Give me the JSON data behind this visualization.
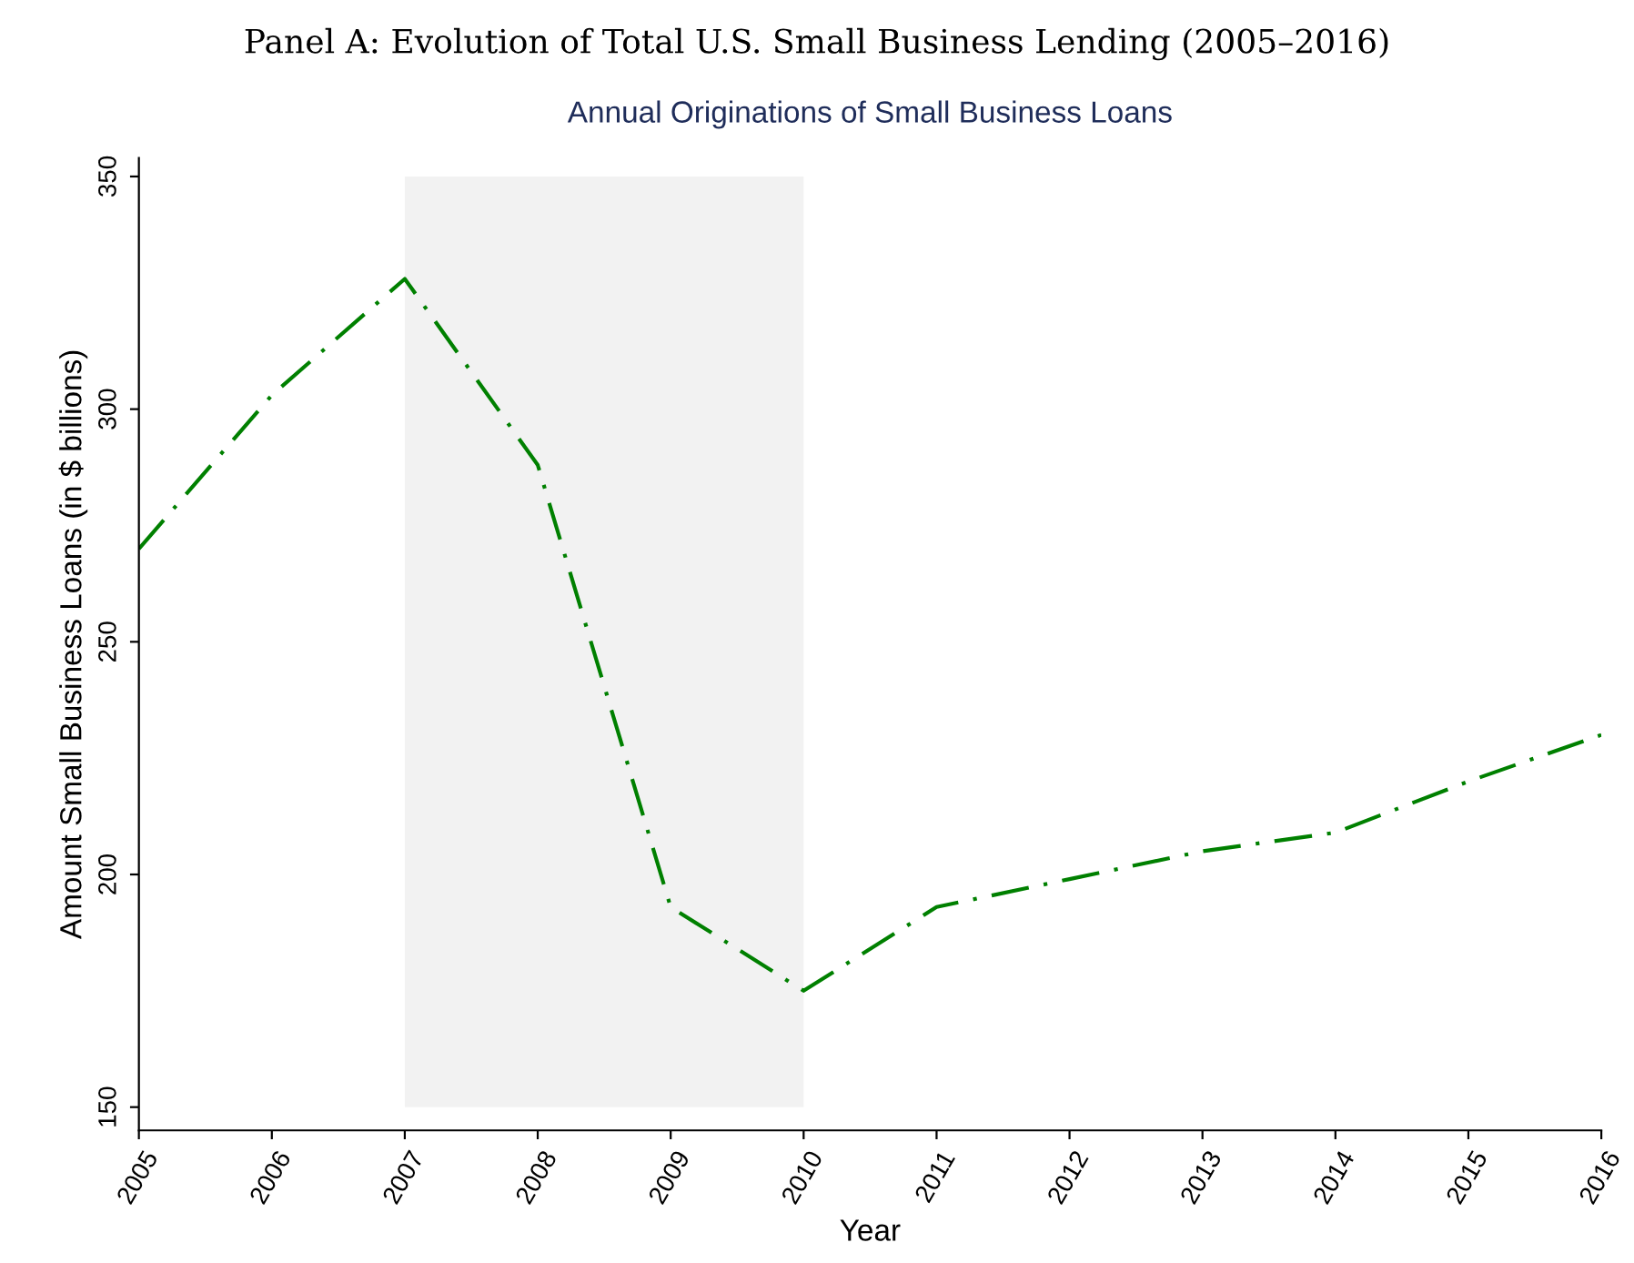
{
  "chart_data": {
    "type": "line",
    "title": "Panel A: Evolution of Total U.S. Small Business Lending (2005–2016)",
    "subtitle": "Annual Originations of Small Business Loans",
    "xlabel": "Year",
    "ylabel": "Amount Small Business Loans (in $ billions)",
    "x": [
      2005,
      2006,
      2007,
      2008,
      2009,
      2010,
      2011,
      2012,
      2013,
      2014,
      2015,
      2016
    ],
    "series": [
      {
        "color": "#008000",
        "values": [
          270,
          303,
          328,
          288,
          193,
          175,
          193,
          199,
          205,
          209,
          220,
          230
        ]
      }
    ],
    "xlim": [
      2005,
      2016
    ],
    "xticks": [
      2005,
      2006,
      2007,
      2008,
      2009,
      2010,
      2011,
      2012,
      2013,
      2014,
      2015,
      2016
    ],
    "ylim": [
      145,
      354
    ],
    "yticks": [
      150,
      200,
      250,
      300,
      350
    ],
    "bands": [
      {
        "axis": "x",
        "from": 2007,
        "to": 2010,
        "color": "#f2f2f2"
      }
    ],
    "grid": false,
    "legend": false,
    "marker": "none",
    "line_style": "dashdot"
  }
}
